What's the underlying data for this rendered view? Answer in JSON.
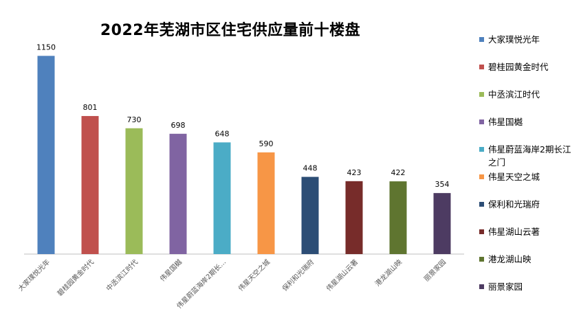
{
  "chart_data": {
    "type": "bar",
    "title": "2022年芜湖市区住宅供应量前十楼盘",
    "categories": [
      "大家璞悦光年",
      "碧桂园黄金时代",
      "中丞滨江时代",
      "伟星国樾",
      "伟星蔚蓝海岸2期长江之门",
      "伟星天空之城",
      "保利和光瑞府",
      "伟星湖山云著",
      "港龙湖山映",
      "丽景家园"
    ],
    "tick_labels": [
      "大家璞悦光年",
      "碧桂园黄金时代",
      "中丞滨江时代",
      "伟星国樾",
      "伟星蔚蓝海岸2期长...",
      "伟星天空之城",
      "保利和光瑞府",
      "伟星湖山云著",
      "港龙湖山映",
      "丽景家园"
    ],
    "values": [
      1150,
      801,
      730,
      698,
      648,
      590,
      448,
      423,
      422,
      354
    ],
    "colors": [
      "#4f81bd",
      "#c0504d",
      "#9bbb59",
      "#8064a2",
      "#4bacc6",
      "#f79646",
      "#2c4d75",
      "#772c2a",
      "#5f7530",
      "#4d3b62"
    ],
    "legend": [
      "大家璞悦光年",
      "碧桂园黄金时代",
      "中丞滨江时代",
      "伟星国樾",
      "伟星蔚蓝海岸2期长江之门",
      "伟星天空之城",
      "保利和光瑞府",
      "伟星湖山云著",
      "港龙湖山映",
      "丽景家园"
    ],
    "legend_position": "right",
    "grid": false,
    "xlabel": "",
    "ylabel": "",
    "ylim": [
      0,
      1250
    ]
  }
}
